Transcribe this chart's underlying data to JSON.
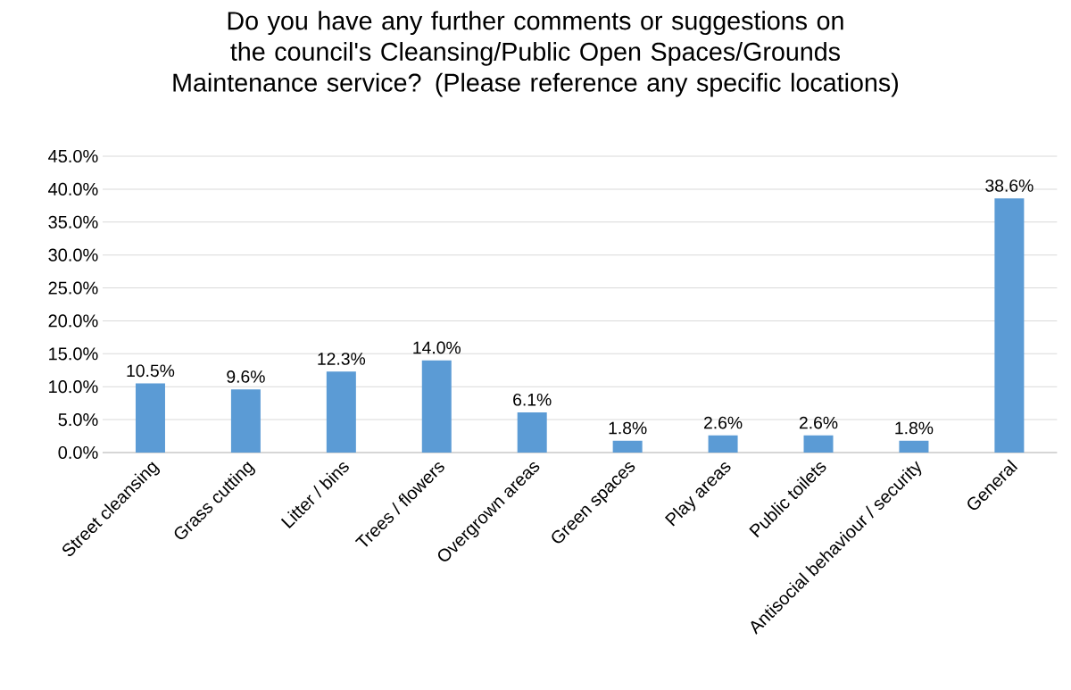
{
  "chart_data": {
    "type": "bar",
    "title": "Do you have any further comments or suggestions on the council's Cleansing/Public Open Spaces/Grounds Maintenance service? (Please reference any specific locations)",
    "categories": [
      "Street cleansing",
      "Grass cutting",
      "Litter / bins",
      "Trees / flowers",
      "Overgrown areas",
      "Green spaces",
      "Play areas",
      "Public toilets",
      "Antisocial behaviour / security",
      "General"
    ],
    "values": [
      10.5,
      9.6,
      12.3,
      14.0,
      6.1,
      1.8,
      2.6,
      2.6,
      1.8,
      38.6
    ],
    "value_labels": [
      "10.5%",
      "9.6%",
      "12.3%",
      "14.0%",
      "6.1%",
      "1.8%",
      "2.6%",
      "2.6%",
      "1.8%",
      "38.6%"
    ],
    "color": "#5b9bd5",
    "ylim": [
      0,
      45
    ],
    "yticks": [
      {
        "value": 0,
        "label": "0.0%"
      },
      {
        "value": 5,
        "label": "5.0%"
      },
      {
        "value": 10,
        "label": "10.0%"
      },
      {
        "value": 15,
        "label": "15.0%"
      },
      {
        "value": 20,
        "label": "20.0%"
      },
      {
        "value": 25,
        "label": "25.0%"
      },
      {
        "value": 30,
        "label": "30.0%"
      },
      {
        "value": 35,
        "label": "35.0%"
      },
      {
        "value": 40,
        "label": "40.0%"
      },
      {
        "value": 45,
        "label": "45.0%"
      }
    ],
    "grid": "y"
  }
}
